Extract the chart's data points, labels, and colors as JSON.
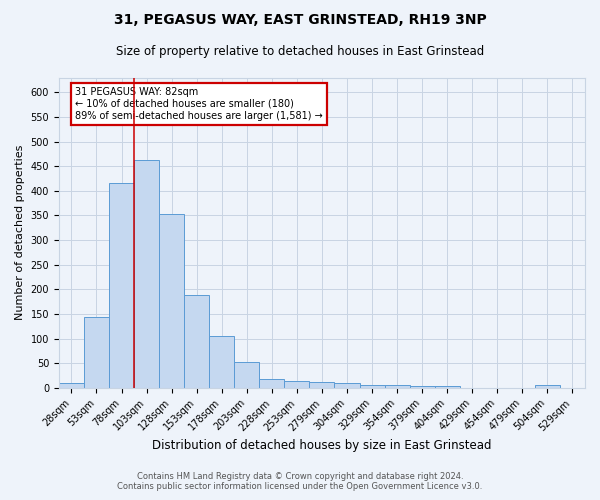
{
  "title": "31, PEGASUS WAY, EAST GRINSTEAD, RH19 3NP",
  "subtitle": "Size of property relative to detached houses in East Grinstead",
  "xlabel": "Distribution of detached houses by size in East Grinstead",
  "ylabel": "Number of detached properties",
  "bins": [
    "28sqm",
    "53sqm",
    "78sqm",
    "103sqm",
    "128sqm",
    "153sqm",
    "178sqm",
    "203sqm",
    "228sqm",
    "253sqm",
    "279sqm",
    "304sqm",
    "329sqm",
    "354sqm",
    "379sqm",
    "404sqm",
    "429sqm",
    "454sqm",
    "479sqm",
    "504sqm",
    "529sqm"
  ],
  "values": [
    10,
    143,
    415,
    462,
    353,
    188,
    105,
    53,
    18,
    14,
    13,
    10,
    5,
    5,
    4,
    4,
    0,
    0,
    0,
    5,
    0
  ],
  "bar_color": "#c5d8f0",
  "bar_edge_color": "#5b9bd5",
  "grid_color": "#c8d4e3",
  "background_color": "#eef3fa",
  "red_line_bin_index": 2,
  "annotation_text": "31 PEGASUS WAY: 82sqm\n← 10% of detached houses are smaller (180)\n89% of semi-detached houses are larger (1,581) →",
  "annotation_box_facecolor": "#ffffff",
  "annotation_box_edgecolor": "#cc0000",
  "footer_line1": "Contains HM Land Registry data © Crown copyright and database right 2024.",
  "footer_line2": "Contains public sector information licensed under the Open Government Licence v3.0.",
  "ylim": [
    0,
    630
  ],
  "yticks": [
    0,
    50,
    100,
    150,
    200,
    250,
    300,
    350,
    400,
    450,
    500,
    550,
    600
  ],
  "title_fontsize": 10,
  "subtitle_fontsize": 8.5,
  "ylabel_fontsize": 8,
  "xlabel_fontsize": 8.5,
  "tick_fontsize": 7,
  "annotation_fontsize": 7,
  "footer_fontsize": 6
}
